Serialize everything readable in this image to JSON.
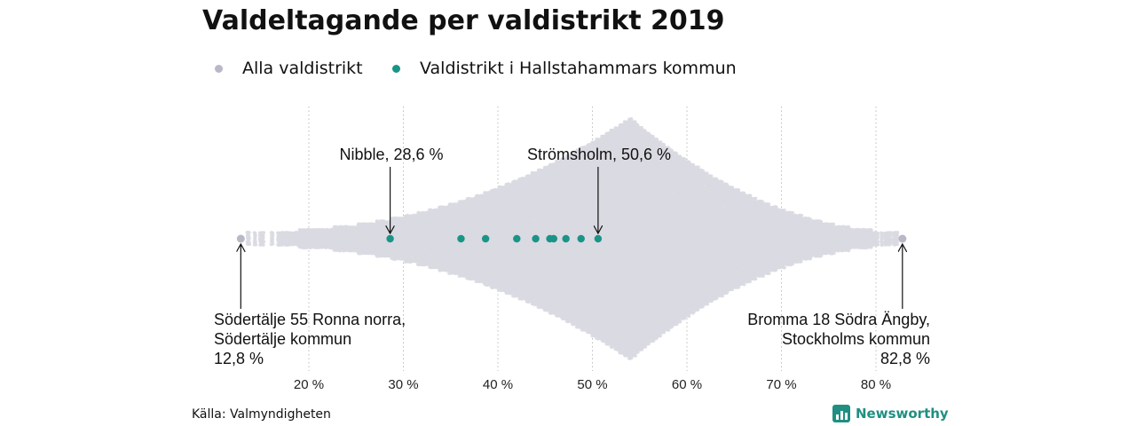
{
  "title": "Valdeltagande per valdistrikt 2019",
  "legend": [
    {
      "label": "Alla valdistrikt",
      "color": "#b8b8c6"
    },
    {
      "label": "Valdistrikt i Hallstahammars kommun",
      "color": "#1a9486"
    }
  ],
  "source": "Källa: Valmyndigheten",
  "brand": {
    "name": "Newsworthy",
    "icon": "bar-chart-icon",
    "color": "#1f8f82"
  },
  "chart_data": {
    "type": "scatter",
    "title": "Valdeltagande per valdistrikt 2019",
    "xlabel": "",
    "ylabel": "",
    "xlim": [
      10,
      85
    ],
    "x_ticks": [
      20,
      30,
      40,
      50,
      60,
      70,
      80
    ],
    "x_tick_labels": [
      "20 %",
      "30 %",
      "40 %",
      "50 %",
      "60 %",
      "70 %",
      "80 %"
    ],
    "grid": "vertical dotted",
    "legend_position": "top-left",
    "series": [
      {
        "name": "Alla valdistrikt",
        "color": "#d9d9e2",
        "distribution": "beeswarm of all voting districts, concentrated around 54 %",
        "min": 12.8,
        "max": 82.8,
        "mode": 54
      },
      {
        "name": "Valdistrikt i Hallstahammars kommun",
        "color": "#1a9486",
        "values": [
          28.6,
          36.1,
          38.7,
          42.0,
          44.0,
          45.5,
          45.9,
          47.2,
          48.8,
          50.6
        ]
      }
    ],
    "annotations": [
      {
        "lines": [
          "Nibble, 28,6 %"
        ],
        "x": 28.6
      },
      {
        "lines": [
          "Strömsholm, 50,6 %"
        ],
        "x": 50.6
      },
      {
        "lines": [
          "Södertälje 55 Ronna norra,",
          "Södertälje kommun",
          "12,8 %"
        ],
        "x": 12.8
      },
      {
        "lines": [
          "Bromma 18 Södra Ängby,",
          "Stockholms kommun",
          "82,8 %"
        ],
        "x": 82.8
      }
    ]
  }
}
